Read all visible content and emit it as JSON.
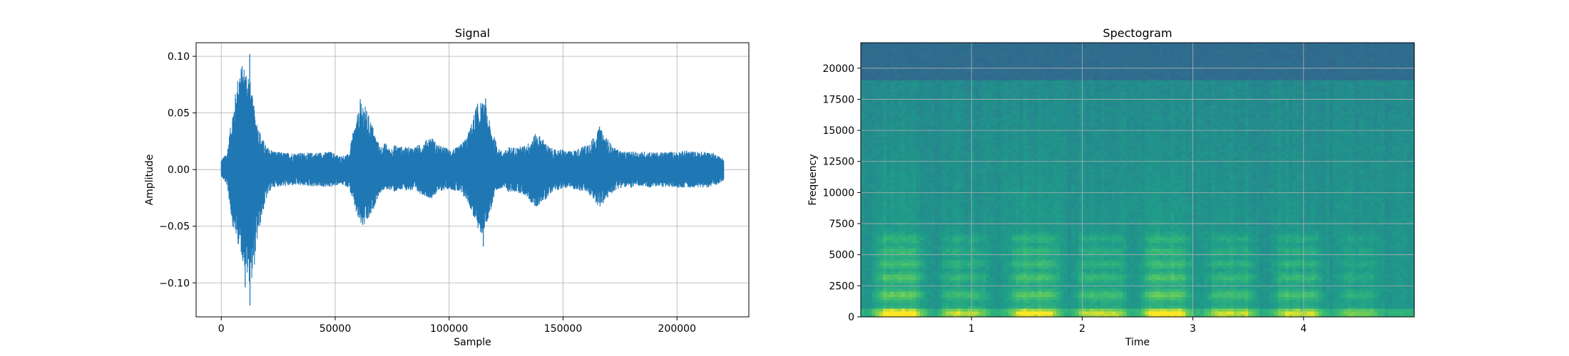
{
  "chart_data": [
    {
      "type": "line",
      "title": "Signal",
      "xlabel": "Sample",
      "ylabel": "Amplitude",
      "xlim": [
        -11025,
        231525
      ],
      "ylim": [
        -0.13,
        0.112
      ],
      "xticks": [
        0,
        50000,
        100000,
        150000,
        200000
      ],
      "xtick_labels": [
        "0",
        "50000",
        "100000",
        "150000",
        "200000"
      ],
      "yticks": [
        -0.1,
        -0.05,
        0.0,
        0.05,
        0.1
      ],
      "ytick_labels": [
        "−0.10",
        "−0.05",
        "0.00",
        "0.05",
        "0.10"
      ],
      "grid": true,
      "color": "#1f77b4",
      "series": [
        {
          "x_range": [
            0,
            220500
          ],
          "envelope": {
            "x": [
              0,
              2500,
              5000,
              8000,
              10000,
              12000,
              14000,
              16000,
              18000,
              20000,
              22000,
              24000,
              28000,
              32000,
              40000,
              48000,
              52000,
              56000,
              58000,
              60000,
              62000,
              64000,
              66000,
              68000,
              70000,
              72000,
              74000,
              76000,
              80000,
              84000,
              88000,
              92000,
              95000,
              98000,
              100000,
              104000,
              108000,
              110000,
              112000,
              114000,
              116000,
              118000,
              120000,
              122000,
              124000,
              126000,
              130000,
              134000,
              138000,
              140000,
              142000,
              144000,
              146000,
              148000,
              150000,
              152000,
              156000,
              160000,
              164000,
              166000,
              168000,
              170000,
              172000,
              174000,
              176000,
              180000,
              184000,
              188000,
              192000,
              196000,
              200000,
              204000,
              208000,
              212000,
              216000,
              220500
            ],
            "top": [
              0.009,
              0.015,
              0.052,
              0.092,
              0.093,
              0.089,
              0.06,
              0.04,
              0.028,
              0.02,
              0.018,
              0.016,
              0.015,
              0.015,
              0.015,
              0.016,
              0.012,
              0.014,
              0.035,
              0.05,
              0.062,
              0.052,
              0.042,
              0.028,
              0.02,
              0.024,
              0.018,
              0.022,
              0.02,
              0.02,
              0.023,
              0.03,
              0.022,
              0.02,
              0.018,
              0.02,
              0.03,
              0.042,
              0.058,
              0.06,
              0.058,
              0.04,
              0.028,
              0.018,
              0.016,
              0.02,
              0.02,
              0.022,
              0.032,
              0.03,
              0.025,
              0.02,
              0.018,
              0.018,
              0.018,
              0.016,
              0.018,
              0.022,
              0.03,
              0.037,
              0.032,
              0.026,
              0.02,
              0.018,
              0.016,
              0.016,
              0.016,
              0.016,
              0.015,
              0.016,
              0.016,
              0.017,
              0.016,
              0.016,
              0.015,
              0.01
            ],
            "bottom": [
              -0.006,
              -0.014,
              -0.05,
              -0.07,
              -0.085,
              -0.1,
              -0.095,
              -0.06,
              -0.04,
              -0.025,
              -0.017,
              -0.015,
              -0.015,
              -0.014,
              -0.015,
              -0.016,
              -0.013,
              -0.016,
              -0.03,
              -0.045,
              -0.052,
              -0.048,
              -0.04,
              -0.028,
              -0.02,
              -0.018,
              -0.018,
              -0.02,
              -0.018,
              -0.019,
              -0.022,
              -0.026,
              -0.02,
              -0.018,
              -0.017,
              -0.02,
              -0.028,
              -0.038,
              -0.05,
              -0.06,
              -0.05,
              -0.038,
              -0.025,
              -0.017,
              -0.016,
              -0.02,
              -0.02,
              -0.024,
              -0.035,
              -0.03,
              -0.028,
              -0.022,
              -0.018,
              -0.018,
              -0.017,
              -0.016,
              -0.018,
              -0.02,
              -0.028,
              -0.034,
              -0.03,
              -0.024,
              -0.02,
              -0.017,
              -0.016,
              -0.016,
              -0.015,
              -0.016,
              -0.015,
              -0.016,
              -0.016,
              -0.016,
              -0.016,
              -0.016,
              -0.015,
              -0.01
            ]
          },
          "peaks": [
            {
              "x": 12500,
              "y": 0.102
            },
            {
              "x": 12600,
              "y": -0.12
            },
            {
              "x": 10500,
              "y": -0.104
            },
            {
              "x": 61000,
              "y": 0.062
            },
            {
              "x": 116000,
              "y": 0.063
            },
            {
              "x": 115000,
              "y": -0.068
            },
            {
              "x": 166000,
              "y": 0.038
            }
          ]
        }
      ]
    },
    {
      "type": "heatmap",
      "title": "Spectogram",
      "xlabel": "Time",
      "ylabel": "Frequency",
      "xlim": [
        0,
        5.0
      ],
      "ylim": [
        0,
        22050
      ],
      "xticks": [
        1,
        2,
        3,
        4
      ],
      "xtick_labels": [
        "1",
        "2",
        "3",
        "4"
      ],
      "yticks": [
        0,
        2500,
        5000,
        7500,
        10000,
        12500,
        15000,
        17500,
        20000
      ],
      "ytick_labels": [
        "0",
        "2500",
        "5000",
        "7500",
        "10000",
        "12500",
        "15000",
        "17500",
        "20000"
      ],
      "grid": true,
      "colormap": "viridis",
      "cutoff_hz": 19000,
      "bursts": [
        {
          "t0": 0.08,
          "t1": 0.62,
          "intensity": 1.0,
          "fmax": 13000
        },
        {
          "t0": 0.68,
          "t1": 1.18,
          "intensity": 0.72,
          "fmax": 7000
        },
        {
          "t0": 1.3,
          "t1": 1.84,
          "intensity": 0.92,
          "fmax": 13500
        },
        {
          "t0": 1.9,
          "t1": 2.44,
          "intensity": 0.78,
          "fmax": 7000
        },
        {
          "t0": 2.5,
          "t1": 3.02,
          "intensity": 1.0,
          "fmax": 12500
        },
        {
          "t0": 3.08,
          "t1": 3.62,
          "intensity": 0.74,
          "fmax": 7000
        },
        {
          "t0": 3.7,
          "t1": 4.22,
          "intensity": 0.8,
          "fmax": 8500
        },
        {
          "t0": 4.3,
          "t1": 4.7,
          "intensity": 0.5,
          "fmax": 5500
        }
      ]
    }
  ]
}
